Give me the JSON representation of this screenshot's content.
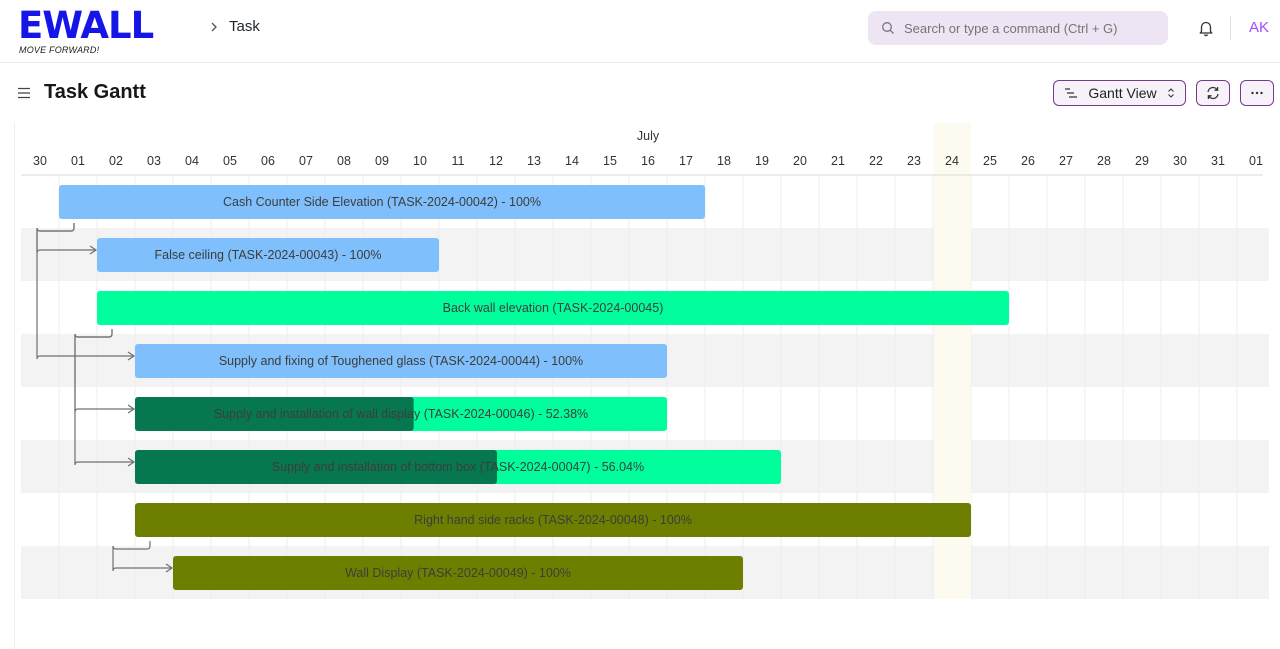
{
  "brand": {
    "name": "EWALL",
    "tagline": "MOVE FORWARD!"
  },
  "breadcrumb": {
    "item": "Task"
  },
  "search": {
    "placeholder": "Search or type a command (Ctrl + G)"
  },
  "user": {
    "initials": "AK"
  },
  "page": {
    "title": "Task Gantt"
  },
  "toolbar": {
    "view_label": "Gantt View"
  },
  "colors": {
    "accent": "#7a3a8c",
    "brand": "#1515e8",
    "today": "#fdfbef",
    "complete_blue": "#7fbffc",
    "green": "#00ff9c",
    "green_progress": "#077750",
    "olive": "#6e7f00"
  },
  "gantt": {
    "month_label": "July",
    "days": [
      "30",
      "01",
      "02",
      "03",
      "04",
      "05",
      "06",
      "07",
      "08",
      "09",
      "10",
      "11",
      "12",
      "13",
      "14",
      "15",
      "16",
      "17",
      "18",
      "19",
      "20",
      "21",
      "22",
      "23",
      "24",
      "25",
      "26",
      "27",
      "28",
      "29",
      "30",
      "31",
      "01"
    ],
    "today_index": 24,
    "tasks": [
      {
        "label": "Cash Counter Side Elevation (TASK-2024-00042) - 100%",
        "start": 1,
        "end": 18,
        "progress": 100,
        "color": "blue"
      },
      {
        "label": "False ceiling (TASK-2024-00043) - 100%",
        "start": 2,
        "end": 11,
        "progress": 100,
        "color": "blue"
      },
      {
        "label": "Back wall elevation (TASK-2024-00045)",
        "start": 2,
        "end": 26,
        "progress": 0,
        "color": "green"
      },
      {
        "label": "Supply and fixing of Toughened glass (TASK-2024-00044) - 100%",
        "start": 3,
        "end": 17,
        "progress": 100,
        "color": "blue"
      },
      {
        "label": "Supply and installation of wall display (TASK-2024-00046) - 52.38%",
        "start": 3,
        "end": 17,
        "progress": 52.38,
        "color": "green"
      },
      {
        "label": "Supply and installation of bottom box (TASK-2024-00047) - 56.04%",
        "start": 3,
        "end": 20,
        "progress": 56.04,
        "color": "green"
      },
      {
        "label": "Right hand side racks (TASK-2024-00048) - 100%",
        "start": 3,
        "end": 25,
        "progress": 100,
        "color": "olive"
      },
      {
        "label": "Wall Display (TASK-2024-00049) - 100%",
        "start": 4,
        "end": 19,
        "progress": 100,
        "color": "olive"
      }
    ],
    "dependencies": [
      [
        0,
        1
      ],
      [
        0,
        3
      ],
      [
        2,
        4
      ],
      [
        2,
        5
      ],
      [
        6,
        7
      ]
    ]
  }
}
